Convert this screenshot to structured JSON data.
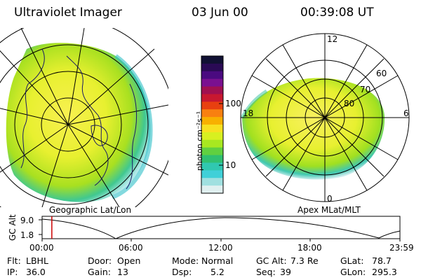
{
  "header": {
    "instrument": "Ultraviolet Imager",
    "date": "03 Jun 00",
    "time": "00:39:08 UT"
  },
  "panels": {
    "left_caption": "Geographic Lat/Lon",
    "right_caption": "Apex MLat/MLT",
    "right_lat_labels": [
      "60",
      "70",
      "80"
    ],
    "right_mlt_labels": [
      "12",
      "18",
      "6",
      "0"
    ]
  },
  "colorbar": {
    "label": "photon cm⁻²s⁻¹",
    "ticks": [
      "100",
      "10"
    ],
    "colors": [
      "#111133",
      "#2a0a55",
      "#4a0a80",
      "#7a1090",
      "#a01050",
      "#c81830",
      "#e84010",
      "#f88010",
      "#f8b000",
      "#f8e020",
      "#d8f020",
      "#a8e820",
      "#60d040",
      "#30c070",
      "#30c8b0",
      "#40d0d8",
      "#a0e0e0",
      "#e0f0f0"
    ]
  },
  "altitude_plot": {
    "ylabel": "GC Alt",
    "ytick_top": "9.0",
    "ytick_bottom": "1.8",
    "xticks": [
      "00:00",
      "06:00",
      "12:00",
      "18:00",
      "23:59"
    ],
    "cursor_time_hours": 0.652,
    "line_color": "#cc0000"
  },
  "info": {
    "flt_label": "Flt:",
    "flt_value": "LBHL",
    "ip_label": "IP:",
    "ip_value": "36.0",
    "door_label": "Door:",
    "door_value": "Open",
    "gain_label": "Gain:",
    "gain_value": "13",
    "mode_label": "Mode:",
    "mode_value": "Normal",
    "dsp_label": "Dsp:",
    "dsp_value": "5.2",
    "gcalt_label": "GC Alt:",
    "gcalt_value": "7.3 Re",
    "seq_label": "Seq:",
    "seq_value": "39",
    "glat_label": "GLat:",
    "glat_value": "78.7",
    "glon_label": "GLon:",
    "glon_value": "295.3"
  }
}
